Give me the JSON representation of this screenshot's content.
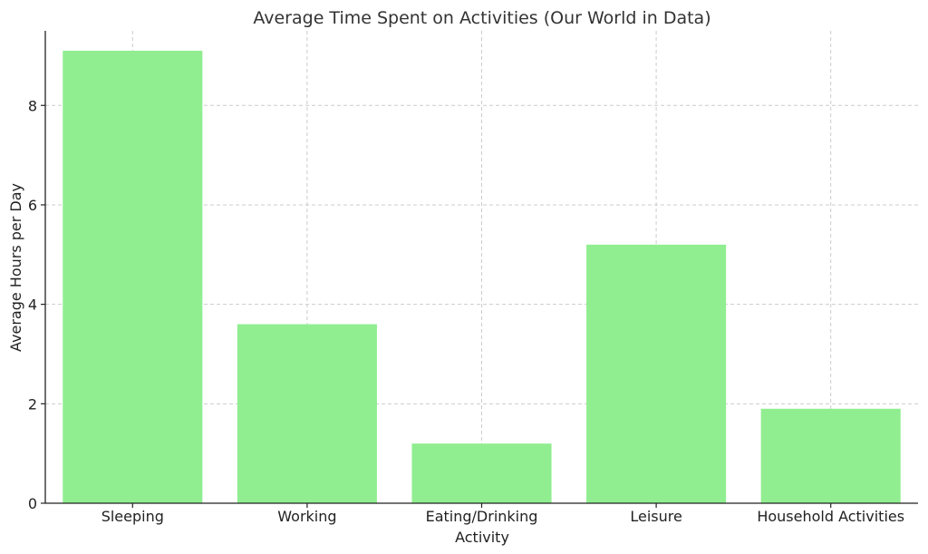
{
  "chart_data": {
    "type": "bar",
    "title": "Average Time Spent on Activities (Our World in Data)",
    "xlabel": "Activity",
    "ylabel": "Average Hours per Day",
    "categories": [
      "Sleeping",
      "Working",
      "Eating/Drinking",
      "Leisure",
      "Household Activities"
    ],
    "values": [
      9.1,
      3.6,
      1.2,
      5.2,
      1.9
    ],
    "ylim": [
      0,
      9.5
    ],
    "yticks": [
      0,
      2,
      4,
      6,
      8
    ],
    "grid": true,
    "bar_color": "#90ee90"
  }
}
